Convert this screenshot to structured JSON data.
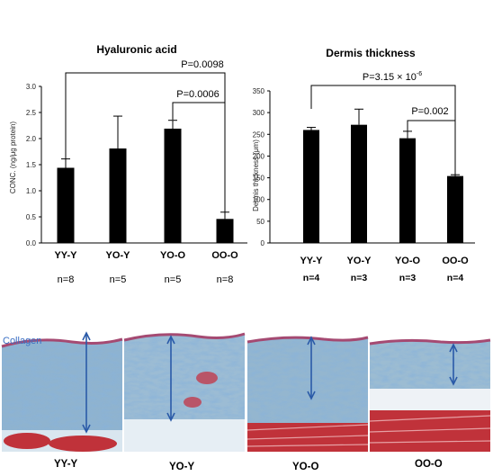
{
  "chart_data": [
    {
      "type": "bar",
      "title": "Hyaluronic acid",
      "ylabel": "CONC. (ng/μg protein)",
      "ylim": [
        0,
        3.0
      ],
      "yticks": [
        "0.0",
        "0.5",
        "1.0",
        "1.5",
        "2.0",
        "2.5",
        "3.0"
      ],
      "categories": [
        "YY-Y",
        "YO-Y",
        "YO-O",
        "OO-O"
      ],
      "values": [
        1.44,
        1.81,
        2.19,
        0.46
      ],
      "errors": [
        0.17,
        0.62,
        0.16,
        0.13
      ],
      "n_labels": [
        "n=8",
        "n=5",
        "n=5",
        "n=8"
      ],
      "comparisons": [
        {
          "label": "P=0.0098",
          "from": "YY-Y",
          "to": "OO-O"
        },
        {
          "label": "P=0.0006",
          "from": "YO-O",
          "to": "OO-O"
        }
      ],
      "grid": false,
      "bar_color": "#000000"
    },
    {
      "type": "bar",
      "title": "Dermis thickness",
      "ylabel": "Dermis thickness (μm)",
      "ylim": [
        0,
        350
      ],
      "yticks": [
        "0",
        "50",
        "100",
        "150",
        "200",
        "250",
        "300",
        "350"
      ],
      "categories": [
        "YY-Y",
        "YO-Y",
        "YO-O",
        "OO-O"
      ],
      "values": [
        260,
        272,
        241,
        154
      ],
      "errors": [
        6,
        36,
        16,
        3
      ],
      "n_labels": [
        "n=4",
        "n=3",
        "n=3",
        "n=4"
      ],
      "comparisons": [
        {
          "label": "P=3.15 × 10",
          "sup": "-6",
          "from": "YY-Y",
          "to": "OO-O"
        },
        {
          "label": "P=0.002",
          "from": "YO-O",
          "to": "OO-O"
        }
      ],
      "grid": false,
      "bar_color": "#000000"
    }
  ],
  "histology": {
    "label": "Collagen",
    "panels": [
      "YY-Y",
      "YO-Y",
      "YO-O",
      "OO-O"
    ],
    "colors": {
      "collagen": "#8fb3cf",
      "muscle": "#c0323a",
      "epidermis": "#a54a72",
      "arrow": "#2a5aa8"
    }
  }
}
